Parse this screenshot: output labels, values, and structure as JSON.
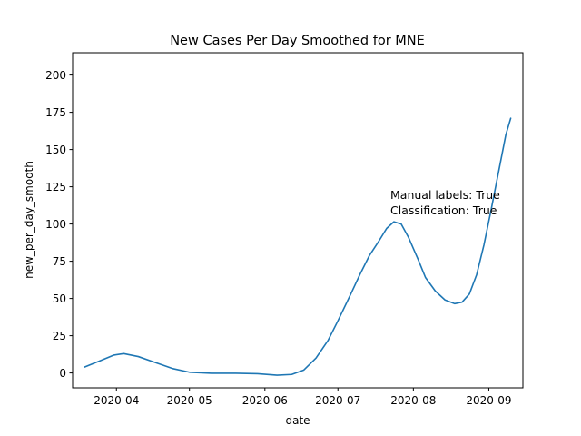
{
  "chart_data": {
    "type": "line",
    "title": "New Cases Per Day Smoothed for MNE",
    "xlabel": "date",
    "ylabel": "new_per_day_smooth",
    "ylim": [
      -10,
      215
    ],
    "xlim": [
      "2020-03-14",
      "2020-09-15"
    ],
    "yticks": [
      0,
      25,
      50,
      75,
      100,
      125,
      150,
      175,
      200
    ],
    "xticks": [
      "2020-04",
      "2020-05",
      "2020-06",
      "2020-07",
      "2020-08",
      "2020-09"
    ],
    "grid": false,
    "annotations": [
      "Manual labels: True",
      "Classification: True"
    ],
    "series": [
      {
        "color": "#1f77b4",
        "points": [
          [
            "2020-03-19",
            4
          ],
          [
            "2020-03-25",
            8
          ],
          [
            "2020-03-31",
            12
          ],
          [
            "2020-04-04",
            13
          ],
          [
            "2020-04-10",
            11
          ],
          [
            "2020-04-17",
            7
          ],
          [
            "2020-04-24",
            3
          ],
          [
            "2020-05-01",
            0.5
          ],
          [
            "2020-05-10",
            -0.2
          ],
          [
            "2020-05-20",
            -0.2
          ],
          [
            "2020-05-29",
            -0.5
          ],
          [
            "2020-06-06",
            -1.5
          ],
          [
            "2020-06-12",
            -1
          ],
          [
            "2020-06-17",
            2
          ],
          [
            "2020-06-22",
            10
          ],
          [
            "2020-06-27",
            22
          ],
          [
            "2020-07-01",
            35
          ],
          [
            "2020-07-06",
            52
          ],
          [
            "2020-07-10",
            66
          ],
          [
            "2020-07-14",
            79
          ],
          [
            "2020-07-18",
            89
          ],
          [
            "2020-07-21",
            97
          ],
          [
            "2020-07-24",
            101.5
          ],
          [
            "2020-07-27",
            100
          ],
          [
            "2020-07-30",
            91
          ],
          [
            "2020-08-03",
            76
          ],
          [
            "2020-08-06",
            64
          ],
          [
            "2020-08-10",
            55
          ],
          [
            "2020-08-14",
            49
          ],
          [
            "2020-08-18",
            46.5
          ],
          [
            "2020-08-21",
            47.5
          ],
          [
            "2020-08-24",
            53
          ],
          [
            "2020-08-27",
            66
          ],
          [
            "2020-08-30",
            86
          ],
          [
            "2020-09-02",
            110
          ],
          [
            "2020-09-05",
            135
          ],
          [
            "2020-09-08",
            160
          ],
          [
            "2020-09-10",
            171
          ]
        ]
      }
    ]
  }
}
